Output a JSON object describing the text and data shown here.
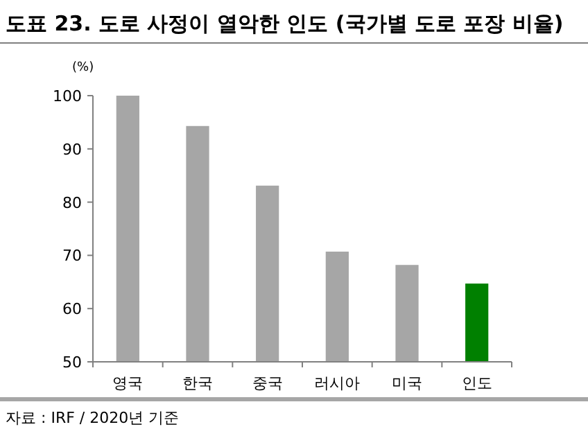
{
  "chart_data": {
    "type": "bar",
    "title": "도표 23. 도로 사정이 열악한 인도 (국가별 도로 포장 비율)",
    "ylabel": "(%)",
    "categories": [
      "영국",
      "한국",
      "중국",
      "러시아",
      "미국",
      "인도"
    ],
    "values": [
      100,
      94.3,
      83.1,
      70.7,
      68.2,
      64.7
    ],
    "colors": [
      "#a6a6a6",
      "#a6a6a6",
      "#a6a6a6",
      "#a6a6a6",
      "#a6a6a6",
      "#008000"
    ],
    "ylim": [
      50,
      100
    ],
    "yticks": [
      50,
      60,
      70,
      80,
      90,
      100
    ],
    "annotations": [
      "자료 : IRF / 2020년 기준"
    ]
  }
}
